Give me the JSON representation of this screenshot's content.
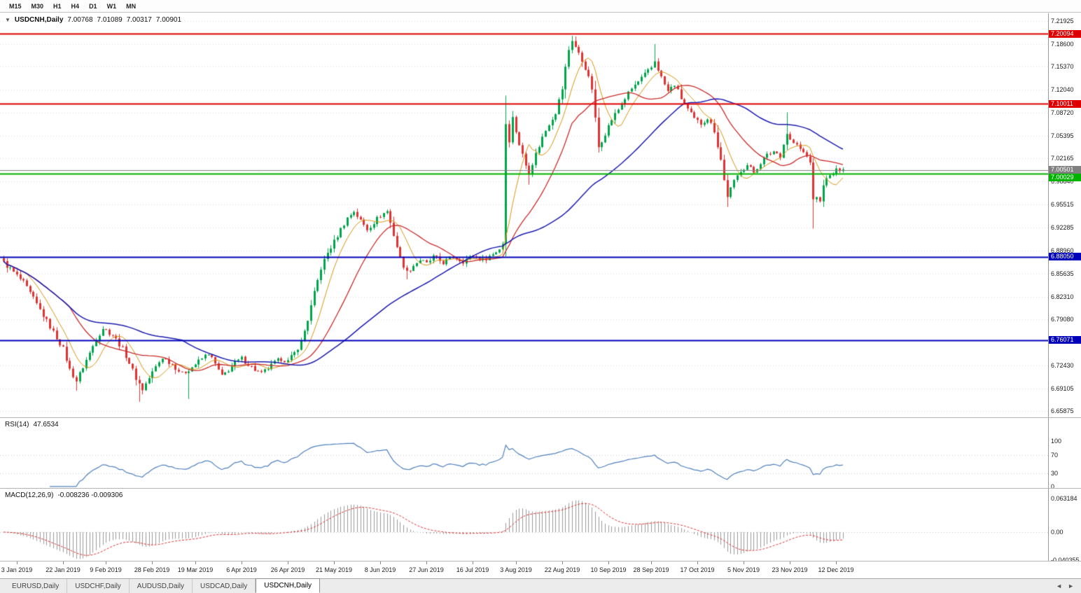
{
  "toolbar": {
    "timeframes": [
      "M15",
      "M30",
      "H1",
      "H4",
      "D1",
      "W1",
      "MN"
    ]
  },
  "chart_header": {
    "collapse_icon": "▼",
    "symbol": "USDCNH,Daily",
    "open": "7.00768",
    "high": "7.01089",
    "low": "7.00317",
    "close": "7.00901"
  },
  "price_axis": {
    "ticks": [
      "7.21925",
      "7.18600",
      "7.15370",
      "7.12040",
      "7.08720",
      "7.05395",
      "7.02165",
      "6.98840",
      "6.95515",
      "6.92285",
      "6.88960",
      "6.85635",
      "6.82310",
      "6.79080",
      "6.72430",
      "6.69105",
      "6.65875"
    ]
  },
  "levels": [
    {
      "price": 7.20094,
      "label": "7.20094",
      "color": "#de0000",
      "line_width": 2
    },
    {
      "price": 7.10011,
      "label": "7.10011",
      "color": "#de0000",
      "line_width": 2
    },
    {
      "price": 7.00501,
      "label": "7.00501",
      "color": "#808080",
      "line_width": 1
    },
    {
      "price": 7.00029,
      "label": "7.00029",
      "color": "#00b300",
      "line_width": 2
    },
    {
      "price": 6.8805,
      "label": "6.88050",
      "color": "#0000bb",
      "line_width": 2
    },
    {
      "price": 6.76071,
      "label": "6.76071",
      "color": "#0000bb",
      "line_width": 2
    }
  ],
  "rsi_panel": {
    "title": "RSI(14)",
    "value": "47.6534",
    "ticks": [
      "100",
      "70",
      "30",
      "0"
    ],
    "line_color": "#4f81bd"
  },
  "macd_panel": {
    "title": "MACD(12,26,9)",
    "values": "-0.008236 -0.009306",
    "ticks": [
      "0.063184",
      "0.00",
      "-0.040355"
    ],
    "histogram_color": "#999999",
    "signal_color": "#e03030"
  },
  "date_axis": [
    {
      "label": "3 Jan 2019",
      "i": 4
    },
    {
      "label": "22 Jan 2019",
      "i": 18
    },
    {
      "label": "9 Feb 2019",
      "i": 31
    },
    {
      "label": "28 Feb 2019",
      "i": 45
    },
    {
      "label": "19 Mar 2019",
      "i": 58
    },
    {
      "label": "6 Apr 2019",
      "i": 72
    },
    {
      "label": "26 Apr 2019",
      "i": 86
    },
    {
      "label": "21 May 2019",
      "i": 100
    },
    {
      "label": "8 Jun 2019",
      "i": 114
    },
    {
      "label": "27 Jun 2019",
      "i": 128
    },
    {
      "label": "16 Jul 2019",
      "i": 142
    },
    {
      "label": "3 Aug 2019",
      "i": 155
    },
    {
      "label": "22 Aug 2019",
      "i": 169
    },
    {
      "label": "10 Sep 2019",
      "i": 183
    },
    {
      "label": "28 Sep 2019",
      "i": 196
    },
    {
      "label": "17 Oct 2019",
      "i": 210
    },
    {
      "label": "5 Nov 2019",
      "i": 224
    },
    {
      "label": "23 Nov 2019",
      "i": 238
    },
    {
      "label": "12 Dec 2019",
      "i": 252
    }
  ],
  "tabbar": {
    "tabs": [
      {
        "label": "EURUSD,Daily",
        "active": false
      },
      {
        "label": "USDCHF,Daily",
        "active": false
      },
      {
        "label": "AUDUSD,Daily",
        "active": false
      },
      {
        "label": "USDCAD,Daily",
        "active": false
      },
      {
        "label": "USDCNH,Daily",
        "active": true
      }
    ],
    "scroll_left": "◄",
    "scroll_right": "►"
  },
  "chart_data": {
    "type": "candlestick",
    "symbol": "USDCNH",
    "timeframe": "Daily",
    "title": "USDCNH,Daily",
    "price_range": {
      "top": 7.21925,
      "bottom": 6.65875
    },
    "candle_count": 255,
    "candle_width": 4.72,
    "colors": {
      "up": "#00a44a",
      "down": "#e03232",
      "background": "#ffffff",
      "grid": "#dcdcdc"
    },
    "close_waypoints": [
      [
        0,
        6.872
      ],
      [
        3,
        6.858
      ],
      [
        6,
        6.843
      ],
      [
        9,
        6.82
      ],
      [
        12,
        6.796
      ],
      [
        15,
        6.772
      ],
      [
        18,
        6.748
      ],
      [
        20,
        6.718
      ],
      [
        22,
        6.702
      ],
      [
        24,
        6.722
      ],
      [
        26,
        6.742
      ],
      [
        28,
        6.762
      ],
      [
        30,
        6.778
      ],
      [
        33,
        6.768
      ],
      [
        36,
        6.748
      ],
      [
        38,
        6.728
      ],
      [
        40,
        6.706
      ],
      [
        42,
        6.69
      ],
      [
        44,
        6.706
      ],
      [
        46,
        6.722
      ],
      [
        48,
        6.736
      ],
      [
        51,
        6.726
      ],
      [
        54,
        6.712
      ],
      [
        57,
        6.722
      ],
      [
        60,
        6.734
      ],
      [
        62,
        6.742
      ],
      [
        64,
        6.726
      ],
      [
        66,
        6.708
      ],
      [
        68,
        6.718
      ],
      [
        70,
        6.728
      ],
      [
        72,
        6.734
      ],
      [
        74,
        6.726
      ],
      [
        76,
        6.718
      ],
      [
        78,
        6.712
      ],
      [
        80,
        6.72
      ],
      [
        82,
        6.728
      ],
      [
        84,
        6.734
      ],
      [
        86,
        6.73
      ],
      [
        88,
        6.742
      ],
      [
        90,
        6.758
      ],
      [
        92,
        6.79
      ],
      [
        94,
        6.828
      ],
      [
        96,
        6.864
      ],
      [
        98,
        6.886
      ],
      [
        100,
        6.902
      ],
      [
        102,
        6.92
      ],
      [
        104,
        6.936
      ],
      [
        106,
        6.946
      ],
      [
        108,
        6.932
      ],
      [
        110,
        6.92
      ],
      [
        112,
        6.93
      ],
      [
        114,
        6.94
      ],
      [
        116,
        6.946
      ],
      [
        118,
        6.912
      ],
      [
        120,
        6.878
      ],
      [
        122,
        6.858
      ],
      [
        124,
        6.868
      ],
      [
        126,
        6.876
      ],
      [
        128,
        6.87
      ],
      [
        130,
        6.88
      ],
      [
        133,
        6.872
      ],
      [
        136,
        6.88
      ],
      [
        139,
        6.874
      ],
      [
        142,
        6.882
      ],
      [
        145,
        6.876
      ],
      [
        148,
        6.884
      ],
      [
        150,
        6.892
      ],
      [
        151,
        6.9
      ],
      [
        152,
        7.072
      ],
      [
        153,
        7.048
      ],
      [
        154,
        7.08
      ],
      [
        156,
        7.042
      ],
      [
        158,
        7.012
      ],
      [
        159,
        7.002
      ],
      [
        161,
        7.028
      ],
      [
        163,
        7.052
      ],
      [
        165,
        7.072
      ],
      [
        167,
        7.088
      ],
      [
        169,
        7.122
      ],
      [
        170,
        7.152
      ],
      [
        171,
        7.178
      ],
      [
        172,
        7.192
      ],
      [
        174,
        7.172
      ],
      [
        176,
        7.152
      ],
      [
        178,
        7.122
      ],
      [
        179,
        7.078
      ],
      [
        180,
        7.038
      ],
      [
        182,
        7.058
      ],
      [
        184,
        7.078
      ],
      [
        186,
        7.092
      ],
      [
        188,
        7.108
      ],
      [
        190,
        7.122
      ],
      [
        192,
        7.132
      ],
      [
        194,
        7.142
      ],
      [
        196,
        7.152
      ],
      [
        197,
        7.162
      ],
      [
        199,
        7.138
      ],
      [
        201,
        7.118
      ],
      [
        203,
        7.128
      ],
      [
        205,
        7.108
      ],
      [
        207,
        7.092
      ],
      [
        209,
        7.078
      ],
      [
        211,
        7.072
      ],
      [
        213,
        7.08
      ],
      [
        215,
        7.062
      ],
      [
        216,
        7.04
      ],
      [
        217,
        7.02
      ],
      [
        218,
        6.99
      ],
      [
        219,
        6.968
      ],
      [
        221,
        6.988
      ],
      [
        223,
        7.005
      ],
      [
        225,
        7.012
      ],
      [
        227,
        7.002
      ],
      [
        229,
        7.016
      ],
      [
        231,
        7.026
      ],
      [
        233,
        7.032
      ],
      [
        235,
        7.026
      ],
      [
        237,
        7.058
      ],
      [
        238,
        7.048
      ],
      [
        240,
        7.04
      ],
      [
        242,
        7.03
      ],
      [
        244,
        7.018
      ],
      [
        245,
        6.96
      ],
      [
        246,
        6.968
      ],
      [
        247,
        6.958
      ],
      [
        248,
        6.986
      ],
      [
        250,
        6.996
      ],
      [
        252,
        7.004
      ],
      [
        254,
        7.009
      ]
    ],
    "special_highs": {
      "152": 7.112,
      "172": 7.198,
      "197": 7.186,
      "237": 7.088
    },
    "special_lows": {
      "22": 6.688,
      "41": 6.672,
      "56": 6.676,
      "122": 6.848,
      "152": 6.886,
      "159": 6.984,
      "219": 6.952,
      "245": 6.921
    },
    "moving_averages": [
      {
        "period": 8,
        "color": "#d89614",
        "width": 1
      },
      {
        "period": 21,
        "color": "#cc2a2a",
        "width": 1.3
      },
      {
        "period": 55,
        "color": "#1c1cb0",
        "width": 1.5
      }
    ],
    "rsi": {
      "period": 14,
      "current": 47.6534
    },
    "macd": {
      "fast": 12,
      "slow": 26,
      "signal_period": 9,
      "macd_current": -0.008236,
      "signal_current": -0.009306
    }
  }
}
